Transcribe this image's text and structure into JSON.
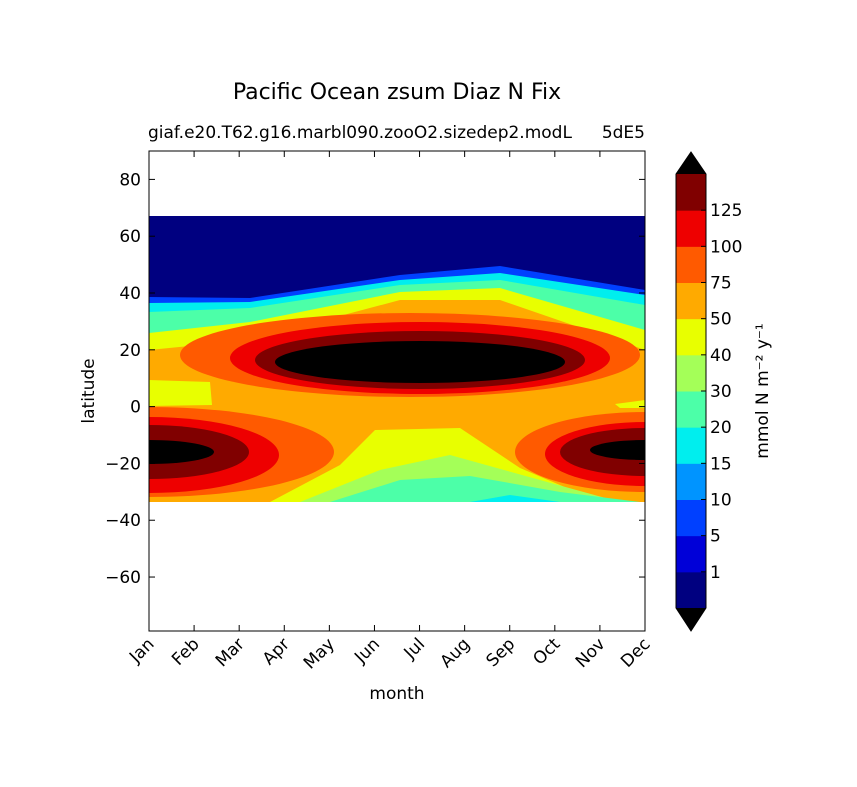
{
  "chart_data": {
    "type": "contour",
    "title": "Pacific Ocean zsum Diaz N Fix",
    "subtitle": "giaf.e20.T62.g16.marbl090.zooO2.sizedep2.modL",
    "subtitle_right": "5dE5",
    "x_label": "month",
    "y_label": "latitude",
    "categories": [
      "Jan",
      "Feb",
      "Mar",
      "Apr",
      "May",
      "Jun",
      "Jul",
      "Aug",
      "Sep",
      "Oct",
      "Nov",
      "Dec"
    ],
    "ylim": [
      -79,
      90
    ],
    "yticks": [
      {
        "value": -60,
        "label": "−60"
      },
      {
        "value": -40,
        "label": "−40"
      },
      {
        "value": -20,
        "label": "−20"
      },
      0,
      20,
      40,
      60,
      80
    ],
    "colorbar": {
      "label": "mmol N m⁻² y⁻¹",
      "ticks": [
        1,
        5,
        10,
        15,
        20,
        30,
        40,
        50,
        75,
        100,
        125
      ],
      "colors": [
        "#000080",
        "#0000d8",
        "#0040ff",
        "#0094ff",
        "#00eeee",
        "#4cffa8",
        "#a4ff58",
        "#e8ff00",
        "#ffaa00",
        "#ff5a00",
        "#ee0000",
        "#800000"
      ],
      "extend_color": "#000000"
    }
  }
}
